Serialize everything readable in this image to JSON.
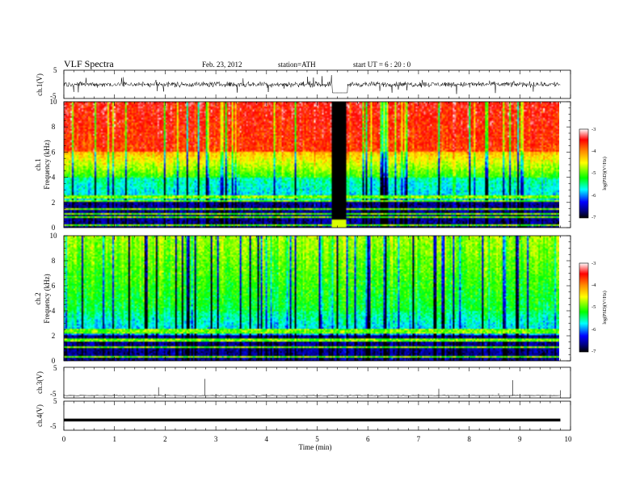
{
  "header": {
    "title": "VLF  Spectra",
    "date": "Feb. 23, 2012",
    "station": "station=ATH",
    "start": "start  UT  =   6  : 20 : 0"
  },
  "chart_data": {
    "type": "heatmap",
    "xlabel": "Time  (min)",
    "xlim": [
      0,
      10
    ],
    "xticks": [
      "0",
      "1",
      "2",
      "3",
      "4",
      "5",
      "6",
      "7",
      "8",
      "9",
      "10"
    ],
    "data_end_min": 9.8,
    "gap_min": [
      5.3,
      5.6
    ],
    "panels": [
      {
        "type": "line",
        "ylabel": "ch.1(V)",
        "yticks": [
          "5",
          "-5"
        ],
        "ylim": [
          -5,
          5
        ],
        "description": "noisy waveform near 0 V; flat at about -3 V during the gap"
      },
      {
        "type": "heatmap",
        "ylabel_lines": [
          "ch.1",
          "Frequency  (kHz)"
        ],
        "yticks": [
          "0",
          "2",
          "4",
          "6",
          "8",
          "10"
        ],
        "ylim": [
          0,
          10
        ],
        "colorbar": {
          "ticks": [
            "-3",
            "-4",
            "-5",
            "-6",
            "-7"
          ],
          "label": "log(PSD)(V²/Hz)",
          "range": [
            -7,
            -3
          ]
        },
        "typical_log_psd": {
          "0-2 kHz": -6.7,
          "2-4 kHz": -5.8,
          "4-6 kHz": -4.8,
          "6-10 kHz": -3.5
        }
      },
      {
        "type": "heatmap",
        "ylabel_lines": [
          "ch.2",
          "Frequency  (kHz)"
        ],
        "yticks": [
          "0",
          "2",
          "4",
          "6",
          "8",
          "10"
        ],
        "ylim": [
          0,
          10
        ],
        "colorbar": {
          "ticks": [
            "-3",
            "-4",
            "-5",
            "-6",
            "-7"
          ],
          "label": "log(PSD)(V²/Hz)",
          "range": [
            -7,
            -3
          ]
        },
        "typical_log_psd": {
          "0-2 kHz": -6.7,
          "2-4 kHz": -5.9,
          "4-10 kHz": -5.0
        }
      },
      {
        "type": "line",
        "ylabel": "ch.3(V)",
        "yticks": [
          "5",
          "-5"
        ],
        "ylim": [
          -5,
          5
        ],
        "description": "near -5 V baseline with sparse positive spikes",
        "spikes": [
          {
            "t": 1.87,
            "v": -1.5
          },
          {
            "t": 2.78,
            "v": 1.2
          },
          {
            "t": 7.4,
            "v": -2.0
          },
          {
            "t": 7.72,
            "v": -4.0
          },
          {
            "t": 8.58,
            "v": -3.5
          },
          {
            "t": 8.86,
            "v": 0.8
          }
        ]
      },
      {
        "type": "line",
        "ylabel": "ch.4(V)",
        "yticks": [
          "5",
          "-5"
        ],
        "ylim": [
          -5,
          5
        ],
        "description": "thick constant trace near -1.5 V",
        "level": -1.5
      }
    ]
  }
}
